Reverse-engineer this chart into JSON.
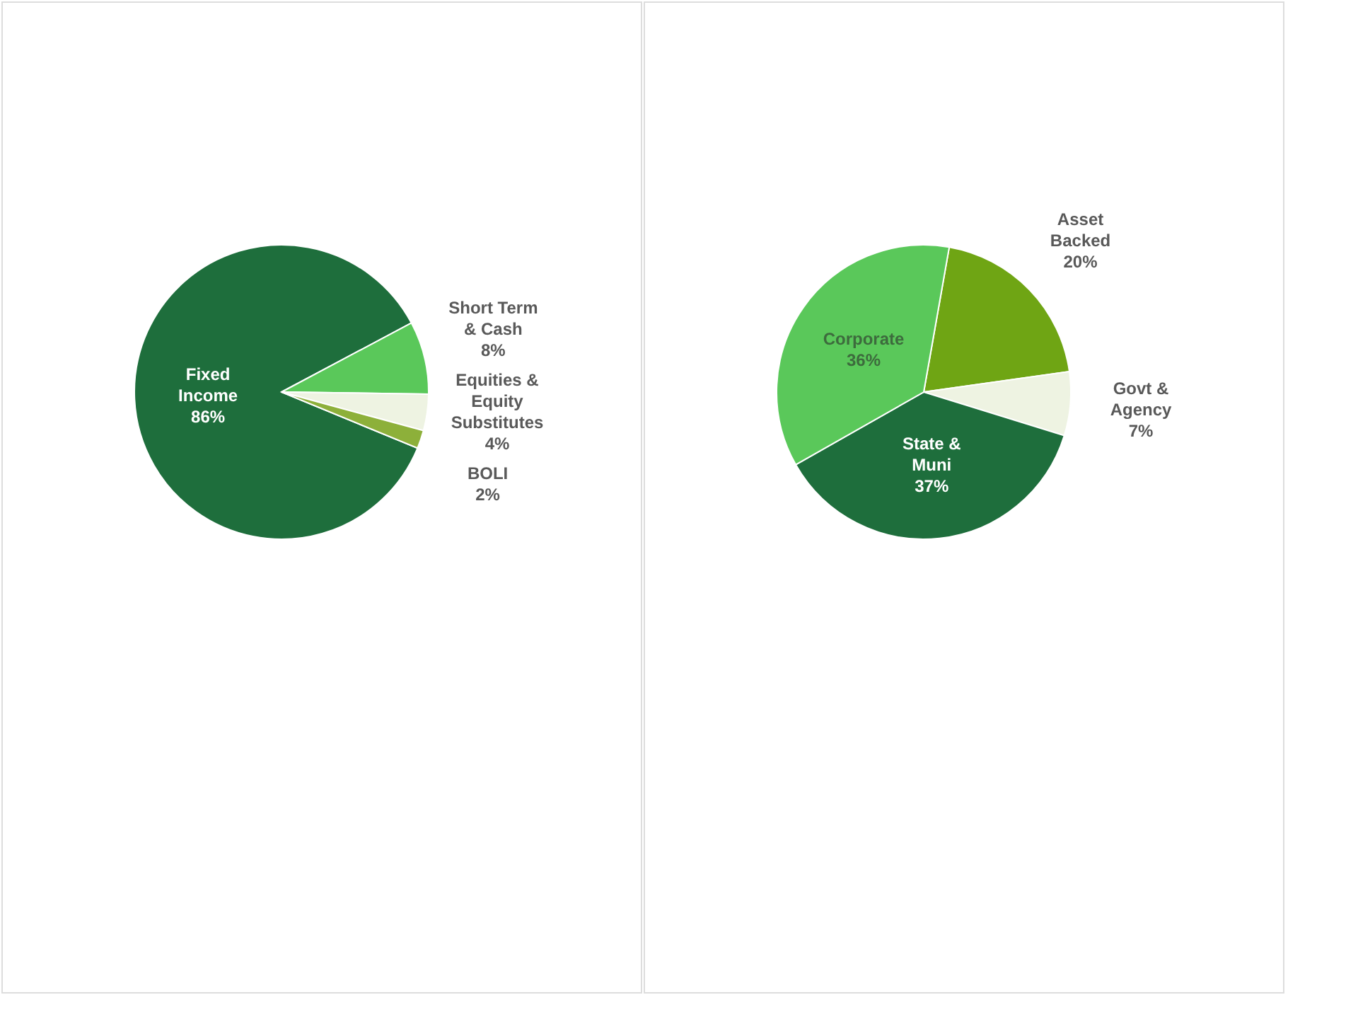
{
  "chart_data": [
    {
      "type": "pie",
      "categories": [
        "Fixed Income",
        "Short Term & Cash",
        "Equities & Equity Substitutes",
        "BOLI"
      ],
      "values": [
        86,
        8,
        4,
        2
      ],
      "value_labels": [
        "86%",
        "8%",
        "4%",
        "2%"
      ],
      "colors": [
        "#1e6e3c",
        "#5ac85a",
        "#eef3e2",
        "#8db03a"
      ]
    },
    {
      "type": "pie",
      "categories": [
        "Asset Backed",
        "Govt & Agency",
        "State & Muni",
        "Corporate"
      ],
      "values": [
        20,
        7,
        37,
        36
      ],
      "value_labels": [
        "20%",
        "7%",
        "37%",
        "36%"
      ],
      "colors": [
        "#6fa514",
        "#eef3e2",
        "#1e6e3c",
        "#5ac85a"
      ]
    }
  ]
}
